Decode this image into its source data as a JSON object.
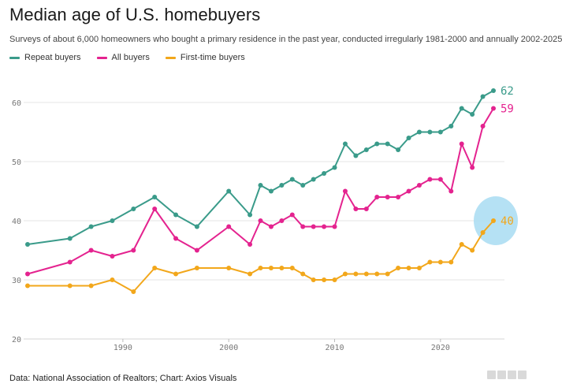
{
  "chart_data": {
    "type": "line",
    "title": "Median age of U.S. homebuyers",
    "subtitle": "Surveys of about 6,000 homeowners who bought a primary residence in the past year, conducted irregularly 1981-2000 and annually 2002-2025",
    "source": "Data: National Association of Realtors; Chart: Axios Visuals",
    "xlabel": "",
    "ylabel": "",
    "xlim": [
      1981,
      2025
    ],
    "ylim": [
      20,
      64
    ],
    "x_ticks": [
      1990,
      2000,
      2010,
      2020
    ],
    "y_ticks": [
      20,
      30,
      40,
      50,
      60
    ],
    "grid": "horizontal",
    "legend_position": "top-left",
    "highlight": {
      "series": "First-time buyers",
      "x": 2025,
      "y": 40,
      "color": "#a8dcf2"
    },
    "series": [
      {
        "name": "Repeat buyers",
        "color": "#3a9b8a",
        "end_label": "62",
        "points": [
          [
            1981,
            36
          ],
          [
            1985,
            37
          ],
          [
            1987,
            39
          ],
          [
            1989,
            40
          ],
          [
            1991,
            42
          ],
          [
            1993,
            44
          ],
          [
            1995,
            41
          ],
          [
            1997,
            39
          ],
          [
            2000,
            45
          ],
          [
            2002,
            41
          ],
          [
            2003,
            46
          ],
          [
            2004,
            45
          ],
          [
            2005,
            46
          ],
          [
            2006,
            47
          ],
          [
            2007,
            46
          ],
          [
            2008,
            47
          ],
          [
            2009,
            48
          ],
          [
            2010,
            49
          ],
          [
            2011,
            53
          ],
          [
            2012,
            51
          ],
          [
            2013,
            52
          ],
          [
            2014,
            53
          ],
          [
            2015,
            53
          ],
          [
            2016,
            52
          ],
          [
            2017,
            54
          ],
          [
            2018,
            55
          ],
          [
            2019,
            55
          ],
          [
            2020,
            55
          ],
          [
            2021,
            56
          ],
          [
            2022,
            59
          ],
          [
            2023,
            58
          ],
          [
            2024,
            61
          ],
          [
            2025,
            62
          ]
        ]
      },
      {
        "name": "All buyers",
        "color": "#e4238f",
        "end_label": "59",
        "points": [
          [
            1981,
            31
          ],
          [
            1985,
            33
          ],
          [
            1987,
            35
          ],
          [
            1989,
            34
          ],
          [
            1991,
            35
          ],
          [
            1993,
            42
          ],
          [
            1995,
            37
          ],
          [
            1997,
            35
          ],
          [
            2000,
            39
          ],
          [
            2002,
            36
          ],
          [
            2003,
            40
          ],
          [
            2004,
            39
          ],
          [
            2005,
            40
          ],
          [
            2006,
            41
          ],
          [
            2007,
            39
          ],
          [
            2008,
            39
          ],
          [
            2009,
            39
          ],
          [
            2010,
            39
          ],
          [
            2011,
            45
          ],
          [
            2012,
            42
          ],
          [
            2013,
            42
          ],
          [
            2014,
            44
          ],
          [
            2015,
            44
          ],
          [
            2016,
            44
          ],
          [
            2017,
            45
          ],
          [
            2018,
            46
          ],
          [
            2019,
            47
          ],
          [
            2020,
            47
          ],
          [
            2021,
            45
          ],
          [
            2022,
            53
          ],
          [
            2023,
            49
          ],
          [
            2024,
            56
          ],
          [
            2025,
            59
          ]
        ]
      },
      {
        "name": "First-time buyers",
        "color": "#f2a71b",
        "end_label": "40",
        "points": [
          [
            1981,
            29
          ],
          [
            1985,
            29
          ],
          [
            1987,
            29
          ],
          [
            1989,
            30
          ],
          [
            1991,
            28
          ],
          [
            1993,
            32
          ],
          [
            1995,
            31
          ],
          [
            1997,
            32
          ],
          [
            2000,
            32
          ],
          [
            2002,
            31
          ],
          [
            2003,
            32
          ],
          [
            2004,
            32
          ],
          [
            2005,
            32
          ],
          [
            2006,
            32
          ],
          [
            2007,
            31
          ],
          [
            2008,
            30
          ],
          [
            2009,
            30
          ],
          [
            2010,
            30
          ],
          [
            2011,
            31
          ],
          [
            2012,
            31
          ],
          [
            2013,
            31
          ],
          [
            2014,
            31
          ],
          [
            2015,
            31
          ],
          [
            2016,
            32
          ],
          [
            2017,
            32
          ],
          [
            2018,
            32
          ],
          [
            2019,
            33
          ],
          [
            2020,
            33
          ],
          [
            2021,
            33
          ],
          [
            2022,
            36
          ],
          [
            2023,
            35
          ],
          [
            2024,
            38
          ],
          [
            2025,
            40
          ]
        ]
      }
    ]
  }
}
